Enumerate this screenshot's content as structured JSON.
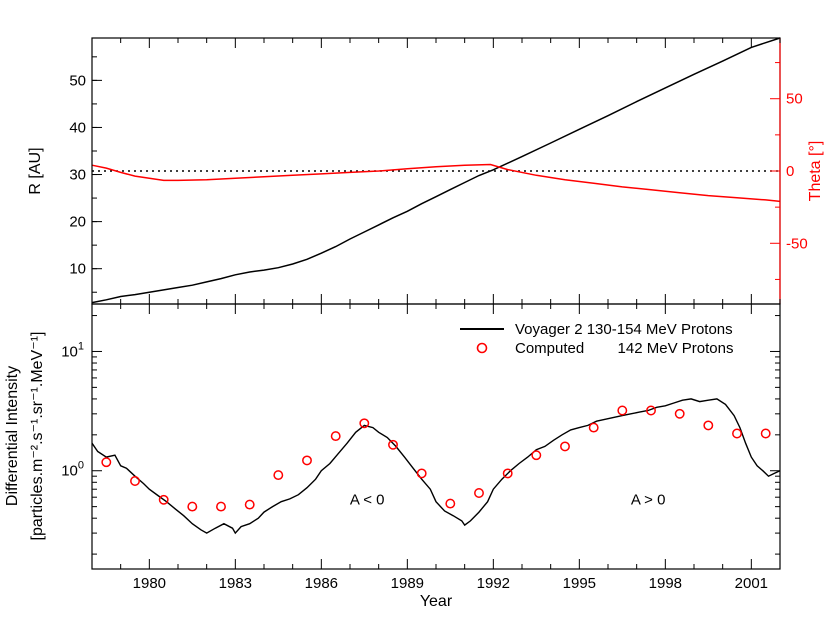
{
  "chart_data": [
    {
      "type": "line",
      "panel": "top",
      "xlabel": "",
      "ylabel": "R [AU]",
      "y2label": "Theta [°]",
      "xlim": [
        1978.0,
        2002.0
      ],
      "ylim": [
        2.5,
        59
      ],
      "y2lim": [
        -92,
        92
      ],
      "y_ticks": [
        10,
        20,
        30,
        40,
        50
      ],
      "y2_ticks": [
        -50,
        0,
        50
      ],
      "reference_line": {
        "axis": "y2",
        "value": 0,
        "style": "dotted"
      },
      "colors": {
        "R": "#000000",
        "Theta": "#ff0000",
        "reference": "#000000"
      },
      "series": [
        {
          "name": "R",
          "axis": "y",
          "x": [
            1978.0,
            1978.5,
            1979.0,
            1979.5,
            1980.0,
            1980.5,
            1981.0,
            1981.5,
            1982.0,
            1982.5,
            1983.0,
            1983.5,
            1984.0,
            1984.5,
            1985.0,
            1985.5,
            1986.0,
            1986.5,
            1987.0,
            1987.5,
            1988.0,
            1988.5,
            1989.0,
            1989.5,
            1990.0,
            1990.5,
            1991.0,
            1991.5,
            1992.0,
            1993.0,
            1994.0,
            1995.0,
            1996.0,
            1997.0,
            1998.0,
            1999.0,
            2000.0,
            2001.0,
            2002.0
          ],
          "values": [
            2.8,
            3.4,
            4.1,
            4.5,
            5.0,
            5.5,
            6.0,
            6.5,
            7.2,
            7.9,
            8.7,
            9.3,
            9.7,
            10.2,
            11.0,
            12.0,
            13.3,
            14.7,
            16.3,
            17.8,
            19.3,
            20.8,
            22.2,
            23.8,
            25.3,
            26.8,
            28.3,
            29.8,
            31.0,
            33.8,
            36.7,
            39.6,
            42.5,
            45.5,
            48.4,
            51.3,
            54.1,
            57.0,
            59.0
          ]
        },
        {
          "name": "Theta",
          "axis": "y2",
          "x": [
            1978.0,
            1978.5,
            1979.0,
            1979.5,
            1980.0,
            1980.5,
            1981.0,
            1982.0,
            1983.0,
            1984.0,
            1985.0,
            1986.0,
            1987.0,
            1988.0,
            1989.0,
            1990.0,
            1991.0,
            1991.9,
            1992.5,
            1993.5,
            1994.5,
            1995.5,
            1996.5,
            1997.5,
            1998.5,
            1999.5,
            2000.5,
            2001.5,
            2002.0
          ],
          "values": [
            4.0,
            2.0,
            -1.0,
            -3.5,
            -5.0,
            -6.5,
            -6.5,
            -6.0,
            -5.0,
            -4.0,
            -3.0,
            -2.0,
            -1.0,
            0.0,
            1.5,
            3.0,
            4.0,
            4.5,
            1.0,
            -3.0,
            -6.0,
            -8.5,
            -11.0,
            -13.0,
            -15.0,
            -17.0,
            -18.5,
            -20.0,
            -21.0
          ]
        }
      ]
    },
    {
      "type": "line",
      "panel": "bottom",
      "xlabel": "Year",
      "ylabel_line1": "Differential Intensity",
      "ylabel_line2": "[particles.m⁻².s⁻¹.sr⁻¹.MeV⁻¹]",
      "xlim": [
        1978.0,
        2002.0
      ],
      "ylim": [
        0.15,
        25
      ],
      "y_scale": "log",
      "x_ticks": [
        "1980",
        "1983",
        "1986",
        "1989",
        "1992",
        "1995",
        "1998",
        "2001"
      ],
      "y_ticks": [
        {
          "value": 1,
          "base": "10",
          "exp": "0"
        },
        {
          "value": 10,
          "base": "10",
          "exp": "1"
        }
      ],
      "legend": {
        "placement": "top-right",
        "items": [
          {
            "label": "Voyager 2 130-154 MeV Protons",
            "symbol": "line",
            "color": "#000000"
          },
          {
            "label": "Computed        142 MeV Protons",
            "symbol": "circle",
            "color": "#ff0000"
          }
        ]
      },
      "annotations": [
        {
          "text": "A < 0",
          "x": 1987.6,
          "y": 0.52
        },
        {
          "text": "A > 0",
          "x": 1997.4,
          "y": 0.52
        }
      ],
      "series": [
        {
          "name": "Voyager 2 130-154 MeV Protons",
          "symbol": "line",
          "color": "#000000",
          "x": [
            1978.0,
            1978.2,
            1978.5,
            1978.8,
            1979.0,
            1979.2,
            1979.5,
            1979.8,
            1980.0,
            1980.3,
            1980.6,
            1980.9,
            1981.2,
            1981.5,
            1981.8,
            1982.0,
            1982.3,
            1982.6,
            1982.9,
            1983.0,
            1983.2,
            1983.5,
            1983.8,
            1984.0,
            1984.3,
            1984.6,
            1984.9,
            1985.2,
            1985.5,
            1985.8,
            1986.0,
            1986.3,
            1986.6,
            1986.9,
            1987.2,
            1987.5,
            1987.8,
            1988.0,
            1988.3,
            1988.6,
            1988.9,
            1989.2,
            1989.5,
            1989.8,
            1990.0,
            1990.3,
            1990.6,
            1990.9,
            1991.0,
            1991.2,
            1991.5,
            1991.8,
            1992.0,
            1992.3,
            1992.6,
            1992.9,
            1993.2,
            1993.5,
            1993.8,
            1994.1,
            1994.4,
            1994.7,
            1995.0,
            1995.3,
            1995.6,
            1995.9,
            1996.2,
            1996.5,
            1996.8,
            1997.1,
            1997.4,
            1997.7,
            1998.0,
            1998.3,
            1998.6,
            1998.9,
            1999.2,
            1999.5,
            1999.8,
            2000.1,
            2000.4,
            2000.6,
            2000.8,
            2001.0,
            2001.2,
            2001.4,
            2001.6,
            2001.8,
            2002.0
          ],
          "values": [
            1.7,
            1.45,
            1.3,
            1.35,
            1.1,
            1.05,
            0.9,
            0.78,
            0.7,
            0.62,
            0.55,
            0.48,
            0.42,
            0.36,
            0.32,
            0.3,
            0.33,
            0.36,
            0.33,
            0.3,
            0.34,
            0.36,
            0.4,
            0.45,
            0.5,
            0.55,
            0.58,
            0.63,
            0.72,
            0.85,
            1.0,
            1.15,
            1.4,
            1.7,
            2.1,
            2.4,
            2.3,
            2.1,
            1.9,
            1.6,
            1.3,
            1.05,
            0.85,
            0.7,
            0.55,
            0.46,
            0.42,
            0.38,
            0.35,
            0.38,
            0.45,
            0.55,
            0.7,
            0.85,
            1.0,
            1.15,
            1.3,
            1.5,
            1.6,
            1.8,
            2.0,
            2.2,
            2.3,
            2.4,
            2.6,
            2.7,
            2.8,
            2.9,
            3.0,
            3.1,
            3.2,
            3.4,
            3.5,
            3.7,
            3.9,
            4.0,
            3.8,
            3.9,
            4.0,
            3.6,
            2.9,
            2.3,
            1.7,
            1.3,
            1.1,
            1.0,
            0.9,
            0.95,
            1.0
          ]
        },
        {
          "name": "Computed        142 MeV Protons",
          "symbol": "circle",
          "color": "#ff0000",
          "x": [
            1978.5,
            1979.5,
            1980.5,
            1981.5,
            1982.5,
            1983.5,
            1984.5,
            1985.5,
            1986.5,
            1987.5,
            1988.5,
            1989.5,
            1990.5,
            1991.5,
            1992.5,
            1993.5,
            1994.5,
            1995.5,
            1996.5,
            1997.5,
            1998.5,
            1999.5,
            2000.5,
            2001.5
          ],
          "values": [
            1.18,
            0.82,
            0.57,
            0.5,
            0.5,
            0.52,
            0.92,
            1.22,
            1.95,
            2.5,
            1.65,
            0.95,
            0.53,
            0.65,
            0.95,
            1.35,
            1.6,
            2.3,
            3.2,
            3.2,
            3.0,
            2.4,
            2.05,
            2.05
          ]
        }
      ]
    }
  ]
}
